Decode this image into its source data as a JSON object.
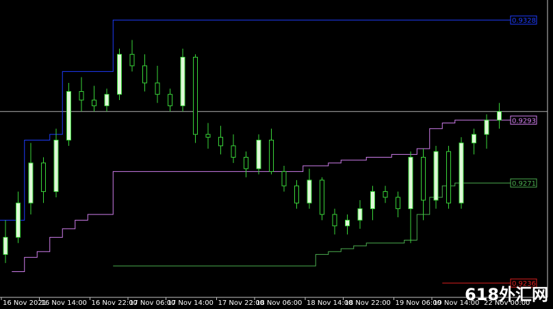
{
  "chart_data": {
    "type": "candlestick",
    "categories": [
      "16 Nov 2021",
      null,
      null,
      "16 Nov 14:00",
      null,
      null,
      null,
      "16 Nov 22:00",
      null,
      null,
      "17 Nov 06:00",
      null,
      null,
      "17 Nov 14:00",
      null,
      null,
      null,
      "17 Nov 22:00",
      null,
      null,
      "18 Nov 06:00",
      null,
      null,
      null,
      "18 Nov 14:00",
      null,
      null,
      "18 Nov 22:00",
      null,
      null,
      null,
      "19 Nov 06:00",
      null,
      null,
      "19 Nov 14:00",
      null,
      null,
      null,
      "22 Nov 00:00",
      null
    ],
    "open": [
      0.9246,
      0.9252,
      0.9264,
      0.9278,
      0.9268,
      0.9286,
      0.9303,
      0.93,
      0.9298,
      0.9302,
      0.9316,
      0.9312,
      0.9306,
      0.9302,
      0.9298,
      0.9315,
      0.9288,
      0.9287,
      0.9284,
      0.928,
      0.9276,
      0.9286,
      0.9275,
      0.927,
      0.9264,
      0.9272,
      0.926,
      0.9256,
      0.9258,
      0.9262,
      0.9268,
      0.9266,
      0.9262,
      0.928,
      0.9265,
      0.9282,
      0.9264,
      0.9285,
      0.9288,
      0.9293
    ],
    "high": [
      0.9258,
      0.9268,
      0.9285,
      0.928,
      0.929,
      0.9306,
      0.9308,
      0.9305,
      0.9304,
      0.9318,
      0.9321,
      0.9316,
      0.9312,
      0.9304,
      0.9318,
      0.9316,
      0.9292,
      0.9291,
      0.9288,
      0.9282,
      0.9288,
      0.929,
      0.9277,
      0.9272,
      0.9276,
      0.9273,
      0.9262,
      0.926,
      0.9265,
      0.927,
      0.927,
      0.9268,
      0.9282,
      0.9283,
      0.9284,
      0.9284,
      0.9287,
      0.929,
      0.9295,
      0.9299
    ],
    "low": [
      0.9243,
      0.925,
      0.926,
      0.9264,
      0.9266,
      0.9284,
      0.9296,
      0.9296,
      0.9296,
      0.93,
      0.931,
      0.9303,
      0.9299,
      0.9296,
      0.9296,
      0.9285,
      0.9283,
      0.9281,
      0.9278,
      0.9273,
      0.9274,
      0.9274,
      0.9268,
      0.9262,
      0.9262,
      0.9258,
      0.9253,
      0.9253,
      0.9255,
      0.9258,
      0.9264,
      0.9259,
      0.925,
      0.9258,
      0.9262,
      0.9262,
      0.9262,
      0.9281,
      0.9283,
      0.929
    ],
    "close": [
      0.9252,
      0.9264,
      0.9278,
      0.9268,
      0.9286,
      0.9303,
      0.93,
      0.9298,
      0.9302,
      0.9316,
      0.9312,
      0.9306,
      0.9302,
      0.9298,
      0.9315,
      0.9288,
      0.9287,
      0.9284,
      0.928,
      0.9276,
      0.9286,
      0.9275,
      0.927,
      0.9264,
      0.9272,
      0.926,
      0.9256,
      0.9258,
      0.9262,
      0.9268,
      0.9266,
      0.9262,
      0.928,
      0.9265,
      0.9282,
      0.9264,
      0.9285,
      0.9288,
      0.9293,
      0.9296
    ],
    "lines": [
      {
        "color": "#1e3cff",
        "values": [
          0.9258,
          0.9258,
          0.9286,
          0.9286,
          0.9288,
          0.931,
          0.931,
          0.931,
          0.931,
          0.9328,
          0.9328,
          0.9328,
          0.9328,
          0.9328,
          0.9328,
          0.9328,
          0.9328,
          0.9328,
          0.9328,
          0.9328,
          0.9328,
          0.9328,
          0.9328,
          0.9328,
          0.9328,
          0.9328,
          0.9328,
          0.9328,
          0.9328,
          0.9328,
          0.9328,
          0.9328,
          0.9328,
          0.9328,
          0.9328,
          0.9328,
          0.9328,
          0.9328,
          0.9328,
          0.9328
        ]
      },
      {
        "color": "#d27ff0",
        "values": [
          null,
          0.924,
          0.9245,
          0.9247,
          0.9252,
          0.9255,
          0.9258,
          0.926,
          0.926,
          0.9275,
          0.9275,
          0.9275,
          0.9275,
          0.9275,
          0.9275,
          0.9275,
          0.9275,
          0.9275,
          0.9275,
          0.9275,
          0.9275,
          0.9275,
          0.9275,
          0.9275,
          0.9277,
          0.9277,
          0.9278,
          0.9279,
          0.9279,
          0.928,
          0.928,
          0.9281,
          0.9281,
          0.9283,
          0.929,
          0.9292,
          0.9293,
          0.9293,
          0.9293,
          0.9293
        ]
      },
      {
        "color": "#4caf50",
        "values": [
          null,
          null,
          null,
          null,
          null,
          null,
          null,
          null,
          null,
          0.9242,
          0.9242,
          0.9242,
          0.9242,
          0.9242,
          0.9242,
          0.9242,
          0.9242,
          0.9242,
          0.9242,
          0.9242,
          0.9242,
          0.9242,
          0.9242,
          0.9242,
          0.9242,
          0.9246,
          0.9247,
          0.9248,
          0.9249,
          0.925,
          0.925,
          0.925,
          0.9251,
          0.926,
          0.9266,
          0.927,
          0.9271,
          0.9271,
          0.9271,
          0.9271
        ]
      },
      {
        "color": "#e02020",
        "values": [
          null,
          null,
          null,
          null,
          null,
          null,
          null,
          null,
          null,
          null,
          null,
          null,
          null,
          null,
          null,
          null,
          null,
          null,
          null,
          null,
          null,
          null,
          null,
          null,
          null,
          null,
          null,
          null,
          null,
          null,
          null,
          null,
          null,
          null,
          null,
          0.9236,
          0.9236,
          0.9236,
          0.9236,
          0.9236
        ]
      }
    ],
    "current_price": 0.9296,
    "current_color": "#b4b4b4",
    "up_color": "#dff7d8",
    "down_color": "#000000",
    "wick_color": "#3ad83a",
    "ylim": [
      0.9231,
      0.9335
    ],
    "watermark": "618外汇网"
  }
}
